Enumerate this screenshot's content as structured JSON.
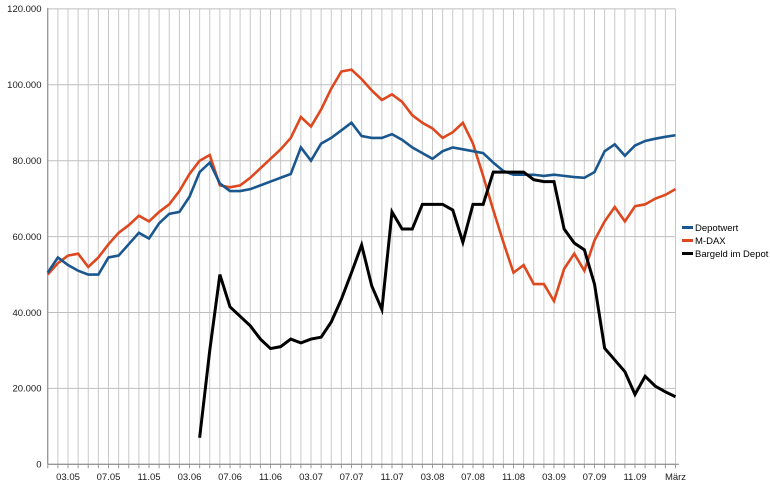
{
  "chart_data": {
    "type": "line",
    "title": "",
    "grid": true,
    "legend_position": "right",
    "x_axis": {
      "tick_labels": [
        "03.05",
        "07.05",
        "11.05",
        "03.06",
        "07.06",
        "11.06",
        "03.07",
        "07.07",
        "11.07",
        "03.08",
        "07.08",
        "11.08",
        "03.09",
        "07.09",
        "11.09",
        "März"
      ],
      "tick_positions": [
        2,
        6,
        10,
        14,
        18,
        22,
        26,
        30,
        34,
        38,
        42,
        46,
        50,
        54,
        58,
        62
      ],
      "points_total": 63
    },
    "y_axis": {
      "tick_labels": [
        "0",
        "20.000",
        "40.000",
        "60.000",
        "80.000",
        "100.000",
        "120.000"
      ],
      "tick_values": [
        0,
        20000,
        40000,
        60000,
        80000,
        100000,
        120000
      ],
      "range": [
        0,
        120000
      ]
    },
    "series": [
      {
        "name": "Depotwert",
        "color": "#1a578f",
        "values": [
          50500,
          54500,
          52500,
          51000,
          50000,
          50000,
          54500,
          55000,
          58000,
          61000,
          59500,
          63500,
          66000,
          66500,
          70500,
          77000,
          79500,
          74000,
          72000,
          72000,
          72500,
          73500,
          74500,
          75500,
          76500,
          83500,
          80000,
          84500,
          86000,
          88000,
          90000,
          86500,
          86000,
          86000,
          87000,
          85500,
          83500,
          82000,
          80500,
          82500,
          83500,
          83000,
          82500,
          82000,
          79500,
          77300,
          76300,
          76300,
          76300,
          76000,
          76300,
          76000,
          75700,
          75500,
          77000,
          82500,
          84300,
          81300,
          84000,
          85200,
          85800,
          86300,
          86700
        ]
      },
      {
        "name": "M-DAX",
        "color": "#de481e",
        "values": [
          50000,
          53000,
          55000,
          55500,
          52000,
          54500,
          58000,
          61000,
          63000,
          65500,
          64000,
          66500,
          68500,
          72000,
          76500,
          80000,
          81500,
          73500,
          73000,
          73500,
          75500,
          78000,
          80500,
          83000,
          86000,
          91500,
          89000,
          93500,
          99000,
          103500,
          104000,
          101500,
          98500,
          96000,
          97500,
          95500,
          92000,
          90000,
          88500,
          86000,
          87500,
          90000,
          84500,
          76000,
          67000,
          58500,
          50500,
          52500,
          47500,
          47500,
          43000,
          51500,
          55500,
          51000,
          59000,
          64000,
          67800,
          64000,
          68000,
          68500,
          70000,
          71000,
          72500
        ]
      },
      {
        "name": "Bargeld im Depot",
        "color": "#000000",
        "values": [
          null,
          null,
          null,
          null,
          null,
          null,
          null,
          null,
          null,
          null,
          null,
          null,
          null,
          null,
          null,
          7000,
          30000,
          50000,
          41500,
          39000,
          36500,
          33000,
          30500,
          31000,
          33000,
          32000,
          33000,
          33500,
          37500,
          43500,
          50500,
          57800,
          47000,
          40800,
          66500,
          62000,
          62000,
          68500,
          68500,
          68500,
          67000,
          58500,
          68500,
          68500,
          77000,
          77000,
          77000,
          77000,
          75000,
          74500,
          74500,
          62000,
          58300,
          56500,
          47500,
          30600,
          27500,
          24400,
          18400,
          23200,
          20600,
          19100,
          17800
        ]
      }
    ]
  },
  "legend": {
    "items": [
      "Depotwert",
      "M-DAX",
      "Bargeld im Depot"
    ]
  }
}
